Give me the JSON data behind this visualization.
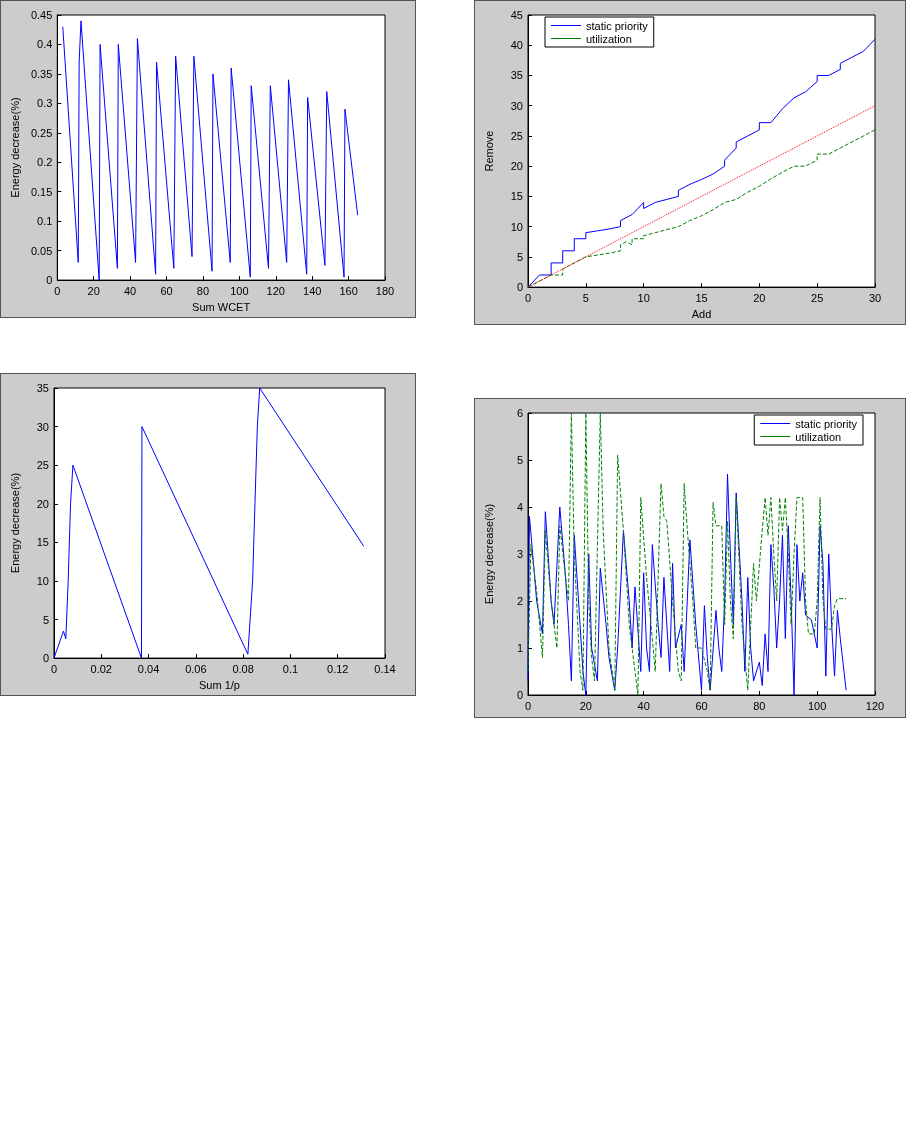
{
  "chart_data": [
    {
      "type": "line",
      "xlabel": "Sum WCET",
      "ylabel": "Energy decrease(%)",
      "xlim": [
        0,
        180
      ],
      "ylim": [
        0,
        0.45
      ],
      "xticks": [
        0,
        20,
        40,
        60,
        80,
        100,
        120,
        140,
        160,
        180
      ],
      "yticks": [
        0,
        0.05,
        0.1,
        0.15,
        0.2,
        0.25,
        0.3,
        0.35,
        0.4,
        0.45
      ],
      "grid": false,
      "legend": false,
      "marker": "none",
      "series": [
        {
          "color": "#0000ff",
          "line_style": "solid",
          "x": [
            3,
            11.5,
            12,
            13,
            23,
            23.5,
            33,
            33.5,
            43,
            44,
            54,
            54.5,
            64,
            65,
            74,
            75,
            85,
            85.5,
            95,
            95.5,
            106,
            106.5,
            116,
            117,
            126,
            127,
            137,
            137.5,
            147,
            148,
            157.5,
            158,
            165
          ],
          "values": [
            0.43,
            0.03,
            0.37,
            0.44,
            0.0,
            0.4,
            0.02,
            0.4,
            0.03,
            0.41,
            0.01,
            0.37,
            0.02,
            0.38,
            0.04,
            0.38,
            0.015,
            0.35,
            0.03,
            0.36,
            0.005,
            0.33,
            0.02,
            0.33,
            0.03,
            0.34,
            0.01,
            0.31,
            0.025,
            0.32,
            0.005,
            0.29,
            0.11
          ]
        }
      ]
    },
    {
      "type": "line",
      "xlabel": "Add",
      "ylabel": "Remove",
      "xlim": [
        0,
        30
      ],
      "ylim": [
        0,
        45
      ],
      "xticks": [
        0,
        5,
        10,
        15,
        20,
        25,
        30
      ],
      "yticks": [
        0,
        5,
        10,
        15,
        20,
        25,
        30,
        35,
        40,
        45
      ],
      "grid": false,
      "legend": "top left",
      "marker": "none",
      "series": [
        {
          "name": "static priority",
          "color": "#0000ff",
          "line_style": "solid",
          "x": [
            0,
            1,
            2,
            2,
            3,
            3,
            4,
            4,
            5,
            5,
            6,
            7,
            8,
            8,
            9,
            9.5,
            10,
            10,
            11,
            12,
            13,
            13,
            14,
            15,
            16,
            17,
            17,
            18,
            18,
            19,
            20,
            20,
            21,
            22,
            23,
            24,
            25,
            25,
            26,
            27,
            27,
            28,
            29,
            30
          ],
          "values": [
            0,
            2,
            2,
            4,
            4,
            6,
            6,
            8,
            8,
            9,
            9.3,
            9.6,
            10,
            11,
            12,
            13,
            14,
            13,
            14,
            14.5,
            15,
            16,
            17,
            17.8,
            18.7,
            20,
            21,
            23,
            24,
            25,
            26,
            27.2,
            27.2,
            29.5,
            31.3,
            32.3,
            34,
            35,
            35,
            36,
            37,
            38,
            39,
            41
          ]
        },
        {
          "name": "utilization",
          "color": "#008000",
          "line_style": "dashed",
          "x": [
            0,
            1,
            2,
            3,
            3,
            4,
            5,
            6,
            7,
            8,
            8,
            8.5,
            9,
            9,
            10,
            10,
            11,
            12,
            13,
            14,
            15,
            16,
            17,
            18,
            19,
            20,
            21,
            22,
            23,
            24,
            25,
            25,
            26,
            27,
            28,
            29,
            30
          ],
          "values": [
            0,
            1,
            2,
            2,
            3,
            4,
            5,
            5.3,
            5.6,
            6,
            7,
            7.5,
            7,
            8,
            8,
            8.5,
            9,
            9.5,
            10,
            11,
            11.8,
            12.8,
            14,
            14.5,
            15.7,
            16.7,
            17.9,
            19,
            20,
            20,
            21,
            22,
            22,
            23,
            24,
            25,
            26
          ]
        },
        {
          "color": "#ff0000",
          "line_style": "dotted",
          "x": [
            0,
            30
          ],
          "values": [
            0,
            30
          ]
        }
      ]
    },
    {
      "type": "line",
      "xlabel": "Sum 1/p",
      "ylabel": "Energy decrease(%)",
      "xlim": [
        0,
        0.14
      ],
      "ylim": [
        0,
        35
      ],
      "xticks": [
        0,
        0.02,
        0.04,
        0.06,
        0.08,
        0.1,
        0.12,
        0.14
      ],
      "yticks": [
        0,
        5,
        10,
        15,
        20,
        25,
        30,
        35
      ],
      "grid": false,
      "legend": false,
      "marker": "none",
      "series": [
        {
          "color": "#0000ff",
          "line_style": "solid",
          "x": [
            0,
            0.004,
            0.005,
            0.006,
            0.007,
            0.008,
            0.037,
            0.0372,
            0.082,
            0.084,
            0.085,
            0.086,
            0.087,
            0.131
          ],
          "values": [
            0,
            3.5,
            2.5,
            10,
            20,
            25,
            0,
            30,
            0.5,
            10,
            20,
            30,
            35,
            14.5
          ]
        }
      ]
    },
    {
      "type": "line",
      "ylabel": "Energy decrease(%)",
      "xlim": [
        0,
        120
      ],
      "ylim": [
        0,
        6
      ],
      "xticks": [
        0,
        20,
        40,
        60,
        80,
        100,
        120
      ],
      "yticks": [
        0,
        1,
        2,
        3,
        4,
        5,
        6
      ],
      "grid": false,
      "legend": "top right",
      "marker": "none",
      "series": [
        {
          "name": "static priority",
          "color": "#0000ff",
          "line_style": "solid",
          "x": [
            0,
            0.5,
            3,
            5,
            6,
            8,
            9,
            11,
            13,
            14,
            15,
            16,
            18,
            19,
            20,
            21,
            22,
            24,
            25,
            27,
            28,
            30,
            31,
            33,
            35,
            36,
            37,
            39,
            40,
            41,
            42,
            43,
            45,
            46,
            47,
            49,
            50,
            51,
            53,
            54,
            56,
            58,
            60,
            61,
            62,
            63,
            65,
            66,
            67,
            68,
            69,
            70,
            71,
            72,
            74,
            75,
            76,
            77,
            78,
            80,
            81,
            82,
            83,
            84,
            85,
            86,
            87,
            88,
            89,
            90,
            91,
            92,
            93,
            94,
            95,
            96,
            98,
            100,
            101,
            102,
            103,
            104,
            105,
            106,
            107,
            108,
            110
          ],
          "values": [
            0.3,
            3.8,
            2,
            1.3,
            3.9,
            2,
            1.5,
            4,
            2.5,
            1.5,
            0.3,
            3.4,
            1.5,
            0.5,
            0,
            3,
            1,
            0.3,
            2.7,
            1.5,
            0.8,
            0.1,
            1,
            3.5,
            2,
            1,
            2.3,
            0.5,
            2.6,
            1,
            0.5,
            3.2,
            1.5,
            0.8,
            2.5,
            0.5,
            2.8,
            1,
            1.5,
            0.5,
            3.3,
            1.5,
            0.1,
            1.9,
            0.8,
            0.1,
            1.8,
            1,
            0.5,
            2,
            4.7,
            3,
            1.5,
            4.3,
            2,
            0.5,
            2.5,
            1,
            0.3,
            0.7,
            0.2,
            1.3,
            0.5,
            3.2,
            2.3,
            1,
            2,
            3.4,
            1.2,
            3.6,
            2,
            0,
            3.2,
            2,
            2.6,
            1.7,
            1.6,
            1,
            3.6,
            2.8,
            0.4,
            3,
            1.5,
            0.4,
            1.8,
            1.2,
            0.1
          ]
        },
        {
          "name": "utilization",
          "color": "#008000",
          "line_style": "dashed",
          "x": [
            0,
            1,
            3,
            5,
            6,
            8,
            9,
            10,
            11,
            13,
            14,
            15,
            16,
            18,
            19,
            20,
            21,
            22,
            23,
            25,
            26,
            28,
            30,
            31,
            33,
            35,
            37,
            38,
            39,
            41,
            43,
            44,
            46,
            47,
            48,
            50,
            52,
            53,
            54,
            55,
            57,
            58,
            60,
            62,
            63,
            64,
            65,
            67,
            68,
            69,
            70,
            71,
            72,
            74,
            76,
            78,
            79,
            81,
            82,
            83,
            84,
            85,
            86,
            87,
            88,
            89,
            90,
            91,
            92,
            93,
            95,
            96,
            97,
            99,
            100,
            101,
            102,
            103,
            105,
            106,
            107,
            110
          ],
          "values": [
            0.5,
            3.2,
            2.2,
            0.8,
            3.5,
            2,
            1.5,
            1,
            3.6,
            2.5,
            2,
            6,
            3,
            0.5,
            0.1,
            6,
            2,
            0.8,
            0.3,
            6,
            3.5,
            1,
            0.1,
            5.1,
            3.5,
            1.5,
            0.5,
            0,
            4.2,
            2.5,
            1.2,
            0.5,
            4.5,
            3.8,
            3.7,
            2,
            0.5,
            0.3,
            4.5,
            3.6,
            2,
            1,
            1,
            0.5,
            0.1,
            4.1,
            3.6,
            3.6,
            1.5,
            3.7,
            2,
            1.2,
            4.2,
            1.5,
            0.1,
            2.8,
            2,
            3.5,
            4.2,
            3.4,
            4.2,
            3,
            2,
            4.2,
            3.5,
            4.2,
            3,
            1.5,
            3,
            4.2,
            4.2,
            2,
            1.3,
            1.3,
            2,
            4.2,
            2,
            1.4,
            1.4,
            1.9,
            2.05,
            2.05
          ]
        }
      ]
    }
  ]
}
